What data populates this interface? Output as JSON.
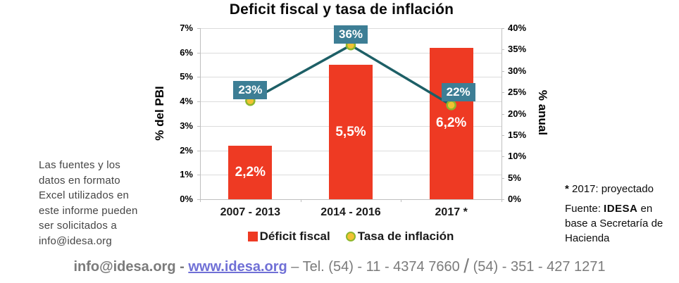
{
  "title": "Deficit fiscal y tasa de inflación",
  "side_note": {
    "lines": [
      "Las fuentes y los",
      "datos en formato",
      "Excel utilizados en",
      "este informe pueden",
      "ser solicitados a",
      "info@idesa.org"
    ]
  },
  "annotations": {
    "projected_star": "*",
    "projected_text": " 2017: proyectado",
    "source_prefix": "Fuente: ",
    "source_brand": "IDESA",
    "source_suffix": " en base a Secretaría de Hacienda"
  },
  "footer": {
    "email": "info@idesa.org",
    "separator1": " - ",
    "link": "www.idesa.org",
    "separator2": " – ",
    "tel_part1": "Tel. (54) - 11 - 4374 7660 ",
    "slash": "/",
    "tel_part2": " (54) - 351 - 427 1271"
  },
  "chart_data": {
    "type": "combo-bar-line",
    "title": "Deficit fiscal y tasa de inflación",
    "categories": [
      "2007 - 2013",
      "2014 - 2016",
      "2017 *"
    ],
    "series": [
      {
        "name": "Déficit fiscal",
        "type": "bar",
        "axis": "left",
        "values": [
          2.2,
          5.5,
          6.2
        ],
        "labels": [
          "2,2%",
          "5,5%",
          "6,2%"
        ],
        "color": "#ee3a23"
      },
      {
        "name": "Tasa de inflación",
        "type": "line",
        "axis": "right",
        "values": [
          23,
          36,
          22
        ],
        "labels": [
          "23%",
          "36%",
          "22%"
        ],
        "line_color": "#1d5f66",
        "marker_fill": "#f1c233",
        "marker_border": "#8db72c",
        "label_bg": "#3d7e95",
        "label_text_color": "#ffffff"
      }
    ],
    "left_axis": {
      "title": "% del PBI",
      "min": 0,
      "max": 7,
      "step": 1,
      "ticks": [
        "0%",
        "1%",
        "2%",
        "3%",
        "4%",
        "5%",
        "6%",
        "7%"
      ]
    },
    "right_axis": {
      "title": "% anual",
      "min": 0,
      "max": 40,
      "step": 5,
      "ticks": [
        "0%",
        "5%",
        "10%",
        "15%",
        "20%",
        "25%",
        "30%",
        "35%",
        "40%"
      ]
    },
    "grid": true,
    "legend_position": "bottom"
  }
}
